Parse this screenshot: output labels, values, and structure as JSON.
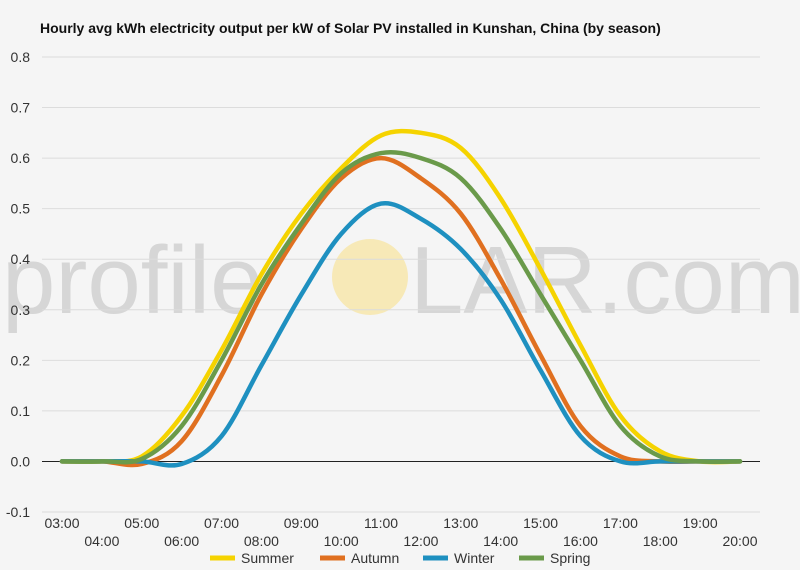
{
  "chart_data": {
    "type": "line",
    "title": "Hourly avg kWh electricity output per kW of Solar PV installed in Kunshan, China (by season)",
    "watermark": {
      "left": "profile",
      "right": "LAR.com"
    },
    "xlabel": "",
    "ylabel": "",
    "x_range": [
      3,
      20
    ],
    "ylim": [
      -0.1,
      0.8
    ],
    "y_ticks": [
      -0.1,
      0.0,
      0.1,
      0.2,
      0.3,
      0.4,
      0.5,
      0.6,
      0.7,
      0.8
    ],
    "y_tick_labels": [
      "-0.1",
      "0.0",
      "0.1",
      "0.2",
      "0.3",
      "0.4",
      "0.5",
      "0.6",
      "0.7",
      "0.8"
    ],
    "x_ticks": [
      3,
      4,
      5,
      6,
      7,
      8,
      9,
      10,
      11,
      12,
      13,
      14,
      15,
      16,
      17,
      18,
      19,
      20
    ],
    "x_tick_labels": [
      "03:00",
      "04:00",
      "05:00",
      "06:00",
      "07:00",
      "08:00",
      "09:00",
      "10:00",
      "11:00",
      "12:00",
      "13:00",
      "14:00",
      "15:00",
      "16:00",
      "17:00",
      "18:00",
      "19:00",
      "20:00"
    ],
    "grid": true,
    "legend_position": "bottom",
    "series": [
      {
        "name": "Summer",
        "color": "#f5d300",
        "x": [
          3,
          4,
          5,
          6,
          7,
          8,
          9,
          10,
          11,
          12,
          13,
          14,
          15,
          16,
          17,
          18,
          19,
          20
        ],
        "values": [
          0.0,
          0.0,
          0.01,
          0.09,
          0.22,
          0.37,
          0.49,
          0.58,
          0.645,
          0.65,
          0.62,
          0.52,
          0.38,
          0.23,
          0.09,
          0.02,
          0.0,
          0.0
        ]
      },
      {
        "name": "Autumn",
        "color": "#e07020",
        "x": [
          3,
          4,
          5,
          6,
          7,
          8,
          9,
          10,
          11,
          12,
          13,
          14,
          15,
          16,
          17,
          18,
          19,
          20
        ],
        "values": [
          0.0,
          0.0,
          -0.005,
          0.04,
          0.17,
          0.33,
          0.46,
          0.56,
          0.6,
          0.56,
          0.49,
          0.36,
          0.21,
          0.07,
          0.01,
          0.0,
          0.0,
          0.0
        ]
      },
      {
        "name": "Winter",
        "color": "#1e90c0",
        "x": [
          3,
          4,
          5,
          6,
          7,
          8,
          9,
          10,
          11,
          12,
          13,
          14,
          15,
          16,
          17,
          18,
          19,
          20
        ],
        "values": [
          0.0,
          0.0,
          0.0,
          -0.005,
          0.05,
          0.19,
          0.33,
          0.45,
          0.51,
          0.48,
          0.42,
          0.32,
          0.18,
          0.05,
          0.0,
          0.0,
          0.0,
          0.0
        ]
      },
      {
        "name": "Spring",
        "color": "#6a9a4a",
        "x": [
          3,
          4,
          5,
          6,
          7,
          8,
          9,
          10,
          11,
          12,
          13,
          14,
          15,
          16,
          17,
          18,
          19,
          20
        ],
        "values": [
          0.0,
          0.0,
          0.005,
          0.07,
          0.2,
          0.35,
          0.47,
          0.57,
          0.61,
          0.6,
          0.56,
          0.46,
          0.33,
          0.2,
          0.07,
          0.01,
          0.0,
          0.0
        ]
      }
    ]
  }
}
